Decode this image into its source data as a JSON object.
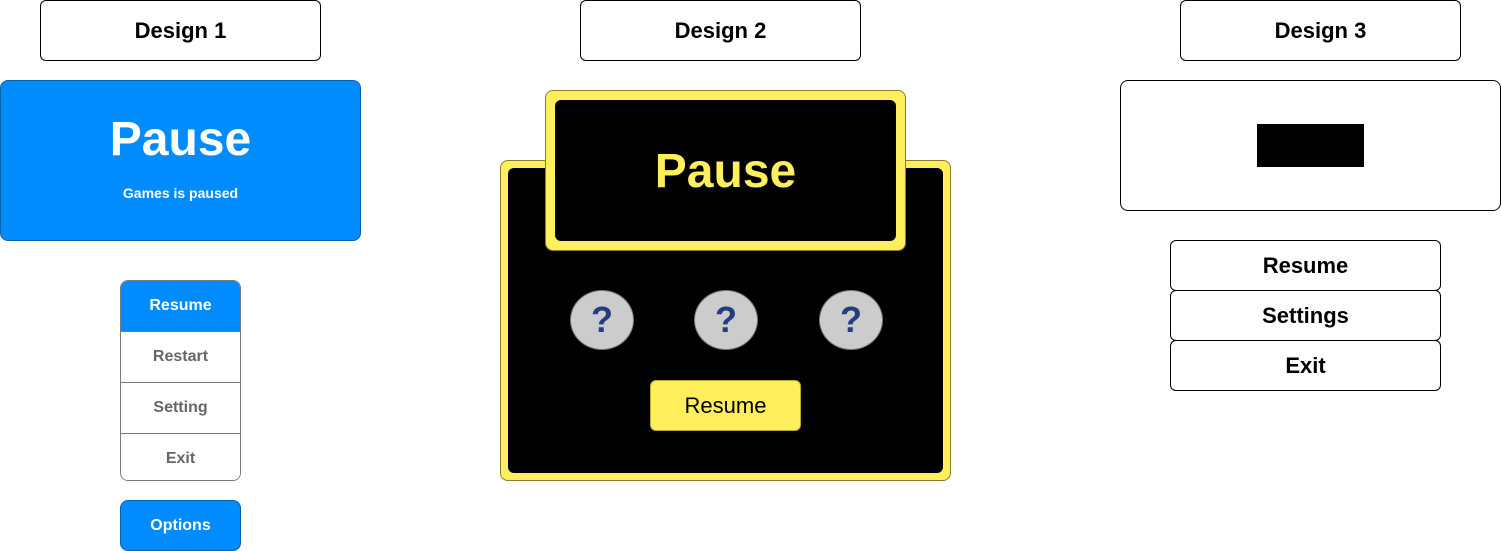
{
  "designs": [
    {
      "label": "Design 1"
    },
    {
      "label": "Design 2"
    },
    {
      "label": "Design 3"
    }
  ],
  "design1": {
    "title": "Pause",
    "subtitle": "Games is paused",
    "menu": [
      "Resume",
      "Restart",
      "Setting",
      "Exit"
    ],
    "active_item": "Resume",
    "options_label": "Options",
    "accent_color": "#008cff"
  },
  "design2": {
    "title": "Pause",
    "mystery_icons": [
      "?",
      "?",
      "?"
    ],
    "resume_label": "Resume",
    "accent_color": "#ffef5c",
    "panel_color": "#000000"
  },
  "design3": {
    "buttons": [
      "Resume",
      "Settings",
      "Exit"
    ]
  }
}
